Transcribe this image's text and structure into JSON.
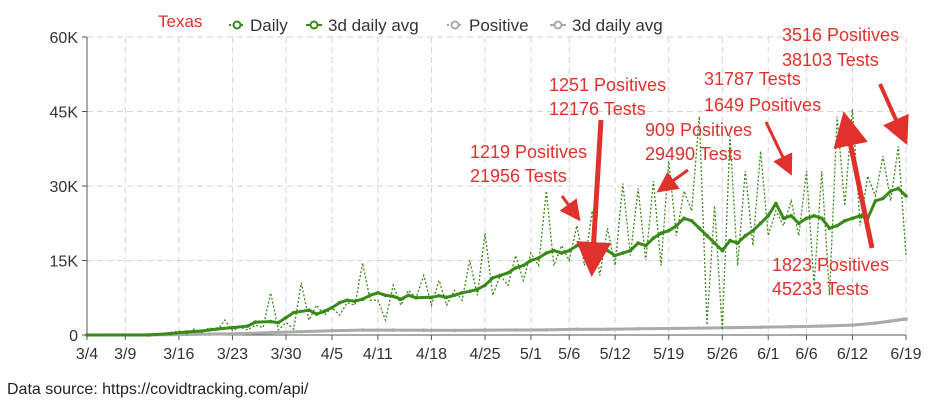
{
  "chart_data": {
    "type": "line",
    "title": "Texas",
    "ylim": [
      0,
      60000
    ],
    "yticks": [
      0,
      15000,
      30000,
      45000,
      60000
    ],
    "ytick_labels": [
      "0",
      "15K",
      "30K",
      "45K",
      "60K"
    ],
    "date_start": "2020-03-04",
    "date_end": "2020-06-19",
    "xtick_labels": [
      "3/4",
      "3/9",
      "3/16",
      "3/23",
      "3/30",
      "4/5",
      "4/11",
      "4/18",
      "4/25",
      "5/1",
      "5/6",
      "5/12",
      "5/19",
      "5/26",
      "6/1",
      "6/6",
      "6/12",
      "6/19"
    ],
    "xtick_dates": [
      "2020-03-04",
      "2020-03-09",
      "2020-03-16",
      "2020-03-23",
      "2020-03-30",
      "2020-04-05",
      "2020-04-11",
      "2020-04-18",
      "2020-04-25",
      "2020-05-01",
      "2020-05-06",
      "2020-05-12",
      "2020-05-19",
      "2020-05-26",
      "2020-06-01",
      "2020-06-06",
      "2020-06-12",
      "2020-06-19"
    ],
    "grid": true,
    "legend_position": "top-left",
    "series": [
      {
        "name": "Daily",
        "style": "dotted",
        "color": "#3a8a1a",
        "points": [
          [
            "2020-03-04",
            0
          ],
          [
            "2020-03-12",
            0
          ],
          [
            "2020-03-14",
            200
          ],
          [
            "2020-03-16",
            800
          ],
          [
            "2020-03-17",
            200
          ],
          [
            "2020-03-18",
            1200
          ],
          [
            "2020-03-19",
            500
          ],
          [
            "2020-03-20",
            1500
          ],
          [
            "2020-03-21",
            800
          ],
          [
            "2020-03-22",
            3000
          ],
          [
            "2020-03-23",
            900
          ],
          [
            "2020-03-24",
            1600
          ],
          [
            "2020-03-25",
            1000
          ],
          [
            "2020-03-26",
            2000
          ],
          [
            "2020-03-27",
            1500
          ],
          [
            "2020-03-28",
            8500
          ],
          [
            "2020-03-29",
            1000
          ],
          [
            "2020-03-30",
            2500
          ],
          [
            "2020-03-31",
            1200
          ],
          [
            "2020-04-01",
            10500
          ],
          [
            "2020-04-02",
            3000
          ],
          [
            "2020-04-03",
            6000
          ],
          [
            "2020-04-04",
            4000
          ],
          [
            "2020-04-05",
            5500
          ],
          [
            "2020-04-06",
            4000
          ],
          [
            "2020-04-07",
            6500
          ],
          [
            "2020-04-08",
            6000
          ],
          [
            "2020-04-09",
            14500
          ],
          [
            "2020-04-10",
            7000
          ],
          [
            "2020-04-11",
            7000
          ],
          [
            "2020-04-12",
            3000
          ],
          [
            "2020-04-13",
            10000
          ],
          [
            "2020-04-14",
            6000
          ],
          [
            "2020-04-15",
            9000
          ],
          [
            "2020-04-16",
            7500
          ],
          [
            "2020-04-17",
            12000
          ],
          [
            "2020-04-18",
            6000
          ],
          [
            "2020-04-19",
            11000
          ],
          [
            "2020-04-20",
            6000
          ],
          [
            "2020-04-21",
            9000
          ],
          [
            "2020-04-22",
            7000
          ],
          [
            "2020-04-23",
            15000
          ],
          [
            "2020-04-24",
            8000
          ],
          [
            "2020-04-25",
            20500
          ],
          [
            "2020-04-26",
            8000
          ],
          [
            "2020-04-27",
            12000
          ],
          [
            "2020-04-28",
            10000
          ],
          [
            "2020-04-29",
            16000
          ],
          [
            "2020-04-30",
            11000
          ],
          [
            "2020-05-01",
            16500
          ],
          [
            "2020-05-02",
            14000
          ],
          [
            "2020-05-03",
            29000
          ],
          [
            "2020-05-04",
            14000
          ],
          [
            "2020-05-05",
            18000
          ],
          [
            "2020-05-06",
            15000
          ],
          [
            "2020-05-07",
            22000
          ],
          [
            "2020-05-08",
            14000
          ],
          [
            "2020-05-09",
            25000
          ],
          [
            "2020-05-10",
            12000
          ],
          [
            "2020-05-11",
            21500
          ],
          [
            "2020-05-12",
            14000
          ],
          [
            "2020-05-13",
            30500
          ],
          [
            "2020-05-14",
            16000
          ],
          [
            "2020-05-15",
            29500
          ],
          [
            "2020-05-16",
            15000
          ],
          [
            "2020-05-17",
            31000
          ],
          [
            "2020-05-18",
            14000
          ],
          [
            "2020-05-19",
            35000
          ],
          [
            "2020-05-20",
            20000
          ],
          [
            "2020-05-21",
            29000
          ],
          [
            "2020-05-22",
            25000
          ],
          [
            "2020-05-23",
            44000
          ],
          [
            "2020-05-24",
            2000
          ],
          [
            "2020-05-25",
            26000
          ],
          [
            "2020-05-26",
            1000
          ],
          [
            "2020-05-27",
            40000
          ],
          [
            "2020-05-28",
            14000
          ],
          [
            "2020-05-29",
            33000
          ],
          [
            "2020-05-30",
            18000
          ],
          [
            "2020-05-31",
            37000
          ],
          [
            "2020-06-01",
            20000
          ],
          [
            "2020-06-02",
            25000
          ],
          [
            "2020-06-03",
            22000
          ],
          [
            "2020-06-04",
            27000
          ],
          [
            "2020-06-05",
            20000
          ],
          [
            "2020-06-06",
            33000
          ],
          [
            "2020-06-07",
            10000
          ],
          [
            "2020-06-08",
            33000
          ],
          [
            "2020-06-09",
            8000
          ],
          [
            "2020-06-10",
            44000
          ],
          [
            "2020-06-11",
            26000
          ],
          [
            "2020-06-12",
            45500
          ],
          [
            "2020-06-13",
            22000
          ],
          [
            "2020-06-14",
            32000
          ],
          [
            "2020-06-15",
            28000
          ],
          [
            "2020-06-16",
            36000
          ],
          [
            "2020-06-17",
            27000
          ],
          [
            "2020-06-18",
            38000
          ],
          [
            "2020-06-19",
            16000
          ]
        ]
      },
      {
        "name": "3d daily avg",
        "style": "solid-markers",
        "color": "#3a8a1a",
        "points": [
          [
            "2020-03-04",
            0
          ],
          [
            "2020-03-12",
            0
          ],
          [
            "2020-03-15",
            300
          ],
          [
            "2020-03-17",
            600
          ],
          [
            "2020-03-19",
            800
          ],
          [
            "2020-03-21",
            1200
          ],
          [
            "2020-03-23",
            1500
          ],
          [
            "2020-03-25",
            1800
          ],
          [
            "2020-03-26",
            2600
          ],
          [
            "2020-03-28",
            2700
          ],
          [
            "2020-03-29",
            2500
          ],
          [
            "2020-03-30",
            3500
          ],
          [
            "2020-03-31",
            4500
          ],
          [
            "2020-04-02",
            5000
          ],
          [
            "2020-04-03",
            4200
          ],
          [
            "2020-04-04",
            4800
          ],
          [
            "2020-04-05",
            5500
          ],
          [
            "2020-04-06",
            6500
          ],
          [
            "2020-04-07",
            7000
          ],
          [
            "2020-04-08",
            6800
          ],
          [
            "2020-04-09",
            7200
          ],
          [
            "2020-04-10",
            8000
          ],
          [
            "2020-04-11",
            8500
          ],
          [
            "2020-04-12",
            8000
          ],
          [
            "2020-04-13",
            7800
          ],
          [
            "2020-04-14",
            7200
          ],
          [
            "2020-04-15",
            8000
          ],
          [
            "2020-04-16",
            7500
          ],
          [
            "2020-04-18",
            7600
          ],
          [
            "2020-04-19",
            7900
          ],
          [
            "2020-04-20",
            7600
          ],
          [
            "2020-04-21",
            8000
          ],
          [
            "2020-04-22",
            8500
          ],
          [
            "2020-04-23",
            8800
          ],
          [
            "2020-04-24",
            9200
          ],
          [
            "2020-04-25",
            10000
          ],
          [
            "2020-04-26",
            11500
          ],
          [
            "2020-04-27",
            12000
          ],
          [
            "2020-04-28",
            12500
          ],
          [
            "2020-04-29",
            13500
          ],
          [
            "2020-04-30",
            14000
          ],
          [
            "2020-05-01",
            15000
          ],
          [
            "2020-05-02",
            15500
          ],
          [
            "2020-05-03",
            16500
          ],
          [
            "2020-05-04",
            17000
          ],
          [
            "2020-05-05",
            16500
          ],
          [
            "2020-05-06",
            17000
          ],
          [
            "2020-05-07",
            18000
          ],
          [
            "2020-05-08",
            17800
          ],
          [
            "2020-05-09",
            17500
          ],
          [
            "2020-05-10",
            17800
          ],
          [
            "2020-05-11",
            17000
          ],
          [
            "2020-05-12",
            16000
          ],
          [
            "2020-05-13",
            16500
          ],
          [
            "2020-05-14",
            17000
          ],
          [
            "2020-05-15",
            18500
          ],
          [
            "2020-05-16",
            18000
          ],
          [
            "2020-05-17",
            19500
          ],
          [
            "2020-05-18",
            20500
          ],
          [
            "2020-05-19",
            21000
          ],
          [
            "2020-05-20",
            22000
          ],
          [
            "2020-05-21",
            23500
          ],
          [
            "2020-05-22",
            23000
          ],
          [
            "2020-05-23",
            21500
          ],
          [
            "2020-05-24",
            20000
          ],
          [
            "2020-05-25",
            18500
          ],
          [
            "2020-05-26",
            17000
          ],
          [
            "2020-05-27",
            19000
          ],
          [
            "2020-05-28",
            18500
          ],
          [
            "2020-05-29",
            20000
          ],
          [
            "2020-05-30",
            21000
          ],
          [
            "2020-05-31",
            22500
          ],
          [
            "2020-06-01",
            24000
          ],
          [
            "2020-06-02",
            26500
          ],
          [
            "2020-06-03",
            23500
          ],
          [
            "2020-06-04",
            24000
          ],
          [
            "2020-06-05",
            22500
          ],
          [
            "2020-06-06",
            23500
          ],
          [
            "2020-06-07",
            24000
          ],
          [
            "2020-06-08",
            23500
          ],
          [
            "2020-06-09",
            21500
          ],
          [
            "2020-06-10",
            22000
          ],
          [
            "2020-06-11",
            23000
          ],
          [
            "2020-06-12",
            23500
          ],
          [
            "2020-06-13",
            24000
          ],
          [
            "2020-06-14",
            23500
          ],
          [
            "2020-06-15",
            27000
          ],
          [
            "2020-06-16",
            27500
          ],
          [
            "2020-06-17",
            29000
          ],
          [
            "2020-06-18",
            29500
          ],
          [
            "2020-06-19",
            28000
          ]
        ]
      },
      {
        "name": "Positive",
        "style": "dotted",
        "color": "#aaaaaa",
        "points": [
          [
            "2020-03-04",
            0
          ],
          [
            "2020-03-12",
            20
          ],
          [
            "2020-03-16",
            100
          ],
          [
            "2020-03-20",
            200
          ],
          [
            "2020-03-24",
            300
          ],
          [
            "2020-03-28",
            500
          ],
          [
            "2020-04-01",
            700
          ],
          [
            "2020-04-05",
            900
          ],
          [
            "2020-04-09",
            1000
          ],
          [
            "2020-04-13",
            1000
          ],
          [
            "2020-04-17",
            1000
          ],
          [
            "2020-04-21",
            900
          ],
          [
            "2020-04-25",
            1000
          ],
          [
            "2020-04-29",
            1000
          ],
          [
            "2020-05-03",
            1000
          ],
          [
            "2020-05-07",
            1200
          ],
          [
            "2020-05-11",
            1100
          ],
          [
            "2020-05-15",
            1300
          ],
          [
            "2020-05-19",
            1300
          ],
          [
            "2020-05-23",
            1400
          ],
          [
            "2020-05-27",
            1500
          ],
          [
            "2020-05-31",
            1600
          ],
          [
            "2020-06-04",
            1700
          ],
          [
            "2020-06-08",
            1800
          ],
          [
            "2020-06-12",
            2000
          ],
          [
            "2020-06-15",
            2500
          ],
          [
            "2020-06-17",
            3000
          ],
          [
            "2020-06-19",
            3500
          ]
        ]
      },
      {
        "name": "3d daily avg",
        "style": "solid-markers",
        "color": "#aaaaaa",
        "points": [
          [
            "2020-03-04",
            0
          ],
          [
            "2020-03-12",
            20
          ],
          [
            "2020-03-16",
            90
          ],
          [
            "2020-03-20",
            190
          ],
          [
            "2020-03-24",
            290
          ],
          [
            "2020-03-28",
            480
          ],
          [
            "2020-04-01",
            680
          ],
          [
            "2020-04-05",
            860
          ],
          [
            "2020-04-09",
            980
          ],
          [
            "2020-04-13",
            990
          ],
          [
            "2020-04-17",
            970
          ],
          [
            "2020-04-21",
            930
          ],
          [
            "2020-04-25",
            980
          ],
          [
            "2020-04-29",
            1000
          ],
          [
            "2020-05-03",
            1020
          ],
          [
            "2020-05-07",
            1150
          ],
          [
            "2020-05-11",
            1150
          ],
          [
            "2020-05-15",
            1250
          ],
          [
            "2020-05-19",
            1300
          ],
          [
            "2020-05-23",
            1380
          ],
          [
            "2020-05-27",
            1480
          ],
          [
            "2020-05-31",
            1580
          ],
          [
            "2020-06-04",
            1680
          ],
          [
            "2020-06-08",
            1800
          ],
          [
            "2020-06-12",
            2000
          ],
          [
            "2020-06-15",
            2400
          ],
          [
            "2020-06-17",
            2800
          ],
          [
            "2020-06-19",
            3200
          ]
        ]
      }
    ],
    "annotations": [
      {
        "lines": [
          "1219 Positives",
          "21956 Tests"
        ],
        "date": "2020-05-08",
        "value": 21956
      },
      {
        "lines": [
          "1251 Positives",
          "12176 Tests"
        ],
        "date": "2020-05-10",
        "value": 12176
      },
      {
        "lines": [
          "909 Positives",
          "29490 Tests"
        ],
        "date": "2020-05-17",
        "value": 29490
      },
      {
        "lines": [
          "31787 Tests",
          "1649 Positives"
        ],
        "date": "2020-06-03",
        "value": 31787
      },
      {
        "lines": [
          "1823 Positives",
          "45233 Tests"
        ],
        "date": "2020-06-12",
        "value": 45233
      },
      {
        "lines": [
          "3516 Positives",
          "38103 Tests"
        ],
        "date": "2020-06-19",
        "value": 38103
      }
    ]
  },
  "source_text": "Data source: https://covidtracking.com/api/"
}
